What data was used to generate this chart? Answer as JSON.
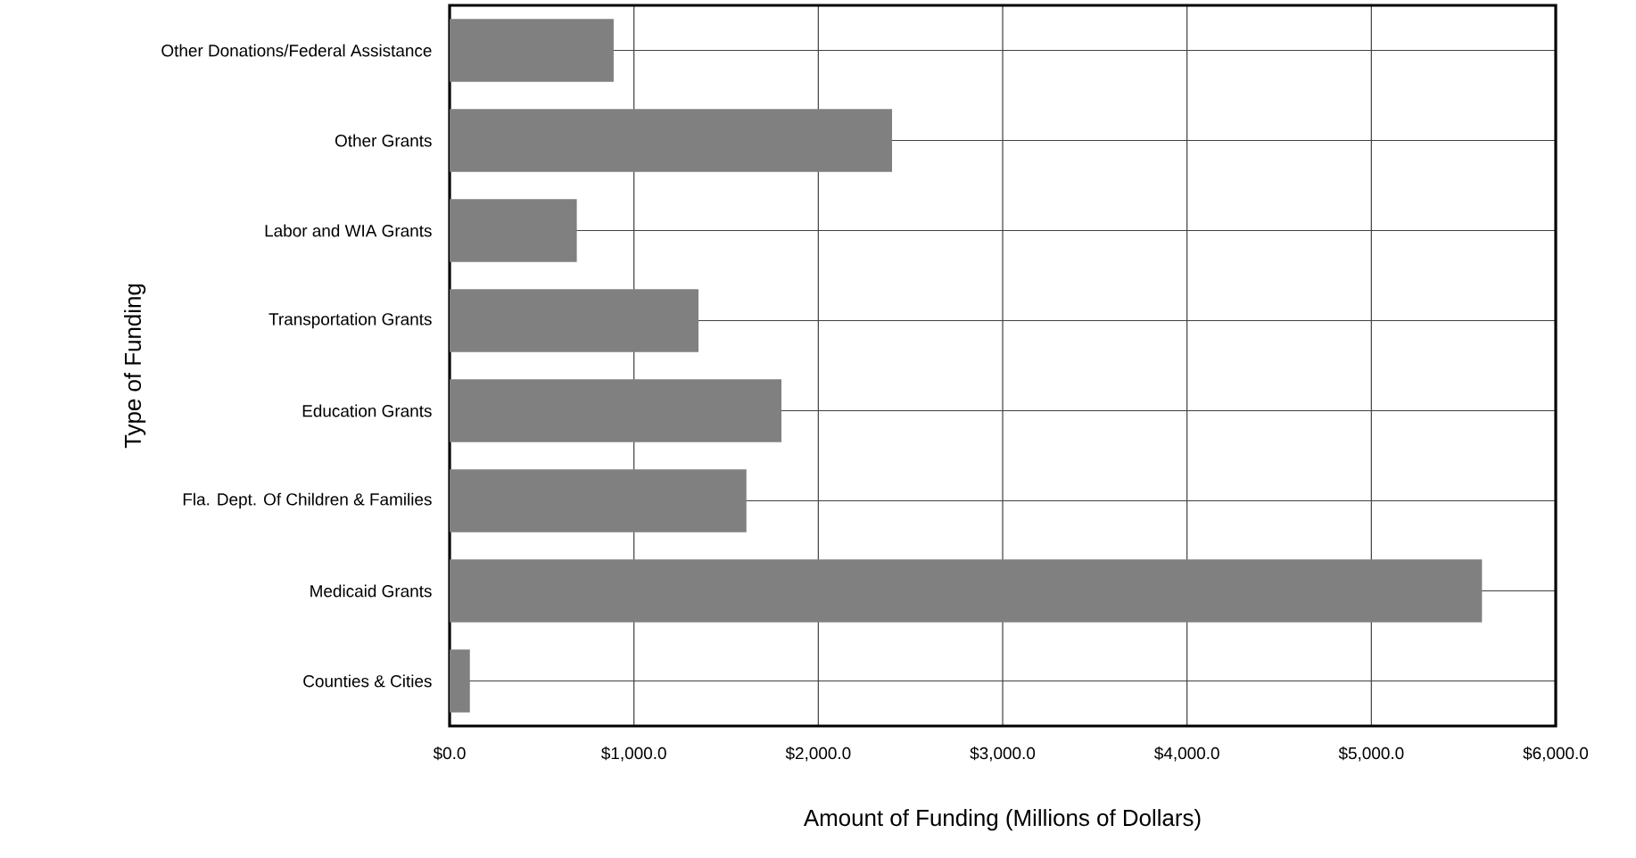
{
  "chart_data": {
    "type": "bar",
    "orientation": "horizontal",
    "xlabel": "Amount of Funding (Millions of Dollars)",
    "ylabel": "Type of Funding",
    "categories": [
      "Other Donations/Federal Assistance",
      "Other Grants",
      "Labor and WIA Grants",
      "Transportation Grants",
      "Education Grants",
      "Fla. Dept. Of Children & Families",
      "Medicaid Grants",
      "Counties & Cities"
    ],
    "values": [
      890,
      2400,
      690,
      1350,
      1800,
      1610,
      5600,
      110
    ],
    "color": "#808080",
    "xlim": [
      0,
      6000
    ],
    "xticks": [
      {
        "value": 0,
        "label": "$0.0"
      },
      {
        "value": 1000,
        "label": "$1,000.0"
      },
      {
        "value": 2000,
        "label": "$2,000.0"
      },
      {
        "value": 3000,
        "label": "$3,000.0"
      },
      {
        "value": 4000,
        "label": "$4,000.0"
      },
      {
        "value": 5000,
        "label": "$5,000.0"
      },
      {
        "value": 6000,
        "label": "$6,000.0"
      }
    ],
    "grid": true
  }
}
